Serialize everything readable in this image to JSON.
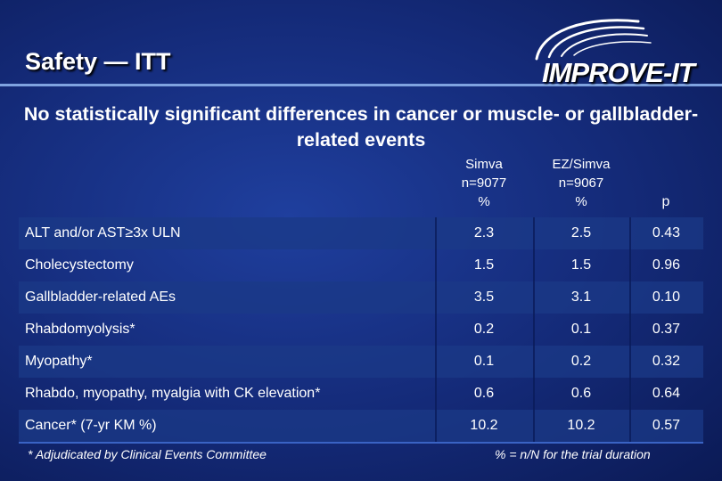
{
  "title": "Safety — ITT",
  "logo": {
    "text": "IMPROVE-IT"
  },
  "subtitle": "No statistically significant differences in cancer or muscle- or gallbladder-related events",
  "columns": {
    "simva": {
      "name": "Simva",
      "n": "n=9077",
      "unit": "%"
    },
    "ezsimva": {
      "name": "EZ/Simva",
      "n": "n=9067",
      "unit": "%"
    },
    "p": "p"
  },
  "rows": [
    {
      "label": "ALT and/or AST≥3x ULN",
      "simva": "2.3",
      "ezsimva": "2.5",
      "p": "0.43"
    },
    {
      "label": "Cholecystectomy",
      "simva": "1.5",
      "ezsimva": "1.5",
      "p": "0.96"
    },
    {
      "label": "Gallbladder-related AEs",
      "simva": "3.5",
      "ezsimva": "3.1",
      "p": "0.10"
    },
    {
      "label": "Rhabdomyolysis*",
      "simva": "0.2",
      "ezsimva": "0.1",
      "p": "0.37"
    },
    {
      "label": "Myopathy*",
      "simva": "0.1",
      "ezsimva": "0.2",
      "p": "0.32"
    },
    {
      "label": "Rhabdo, myopathy, myalgia with CK elevation*",
      "simva": "0.6",
      "ezsimva": "0.6",
      "p": "0.64"
    },
    {
      "label": "Cancer* (7-yr KM %)",
      "simva": "10.2",
      "ezsimva": "10.2",
      "p": "0.57"
    }
  ],
  "footnotes": {
    "left": "* Adjudicated by Clinical Events Committee",
    "right": "% = n/N for the trial duration"
  }
}
